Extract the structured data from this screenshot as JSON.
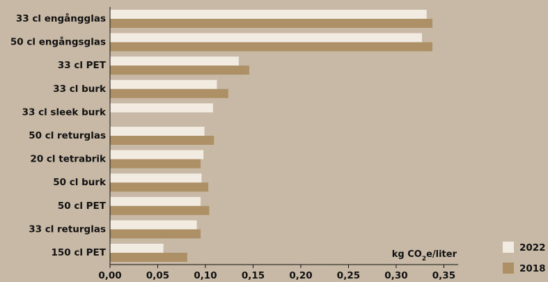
{
  "chart_data": {
    "type": "bar",
    "orientation": "horizontal",
    "categories": [
      "33 cl engångglas",
      "50 cl engångsglas",
      "33 cl PET",
      "33 cl burk",
      "33 cl sleek burk",
      "50 cl returglas",
      "20 cl tetrabrik",
      "50 cl burk",
      "50 cl PET",
      "33 cl returglas",
      "150 cl PET"
    ],
    "series": [
      {
        "name": "2022",
        "color": "#f1ebe1",
        "values": [
          0.332,
          0.327,
          0.135,
          0.112,
          0.108,
          0.099,
          0.098,
          0.096,
          0.095,
          0.091,
          0.056
        ]
      },
      {
        "name": "2018",
        "color": "#ad9065",
        "values": [
          0.338,
          0.338,
          0.146,
          0.124,
          null,
          0.109,
          0.095,
          0.103,
          0.104,
          0.095,
          0.081
        ]
      }
    ],
    "x_ticks": [
      "0,00",
      "0,05",
      "0,10",
      "0,15",
      "0,20",
      "0,25",
      "0,30",
      "0,35"
    ],
    "xlim": [
      0,
      0.365
    ],
    "unit_label": {
      "prefix": "kg CO",
      "subscript": "2",
      "suffix": "e/liter"
    },
    "legend_position": "bottom-right",
    "grid": false
  }
}
